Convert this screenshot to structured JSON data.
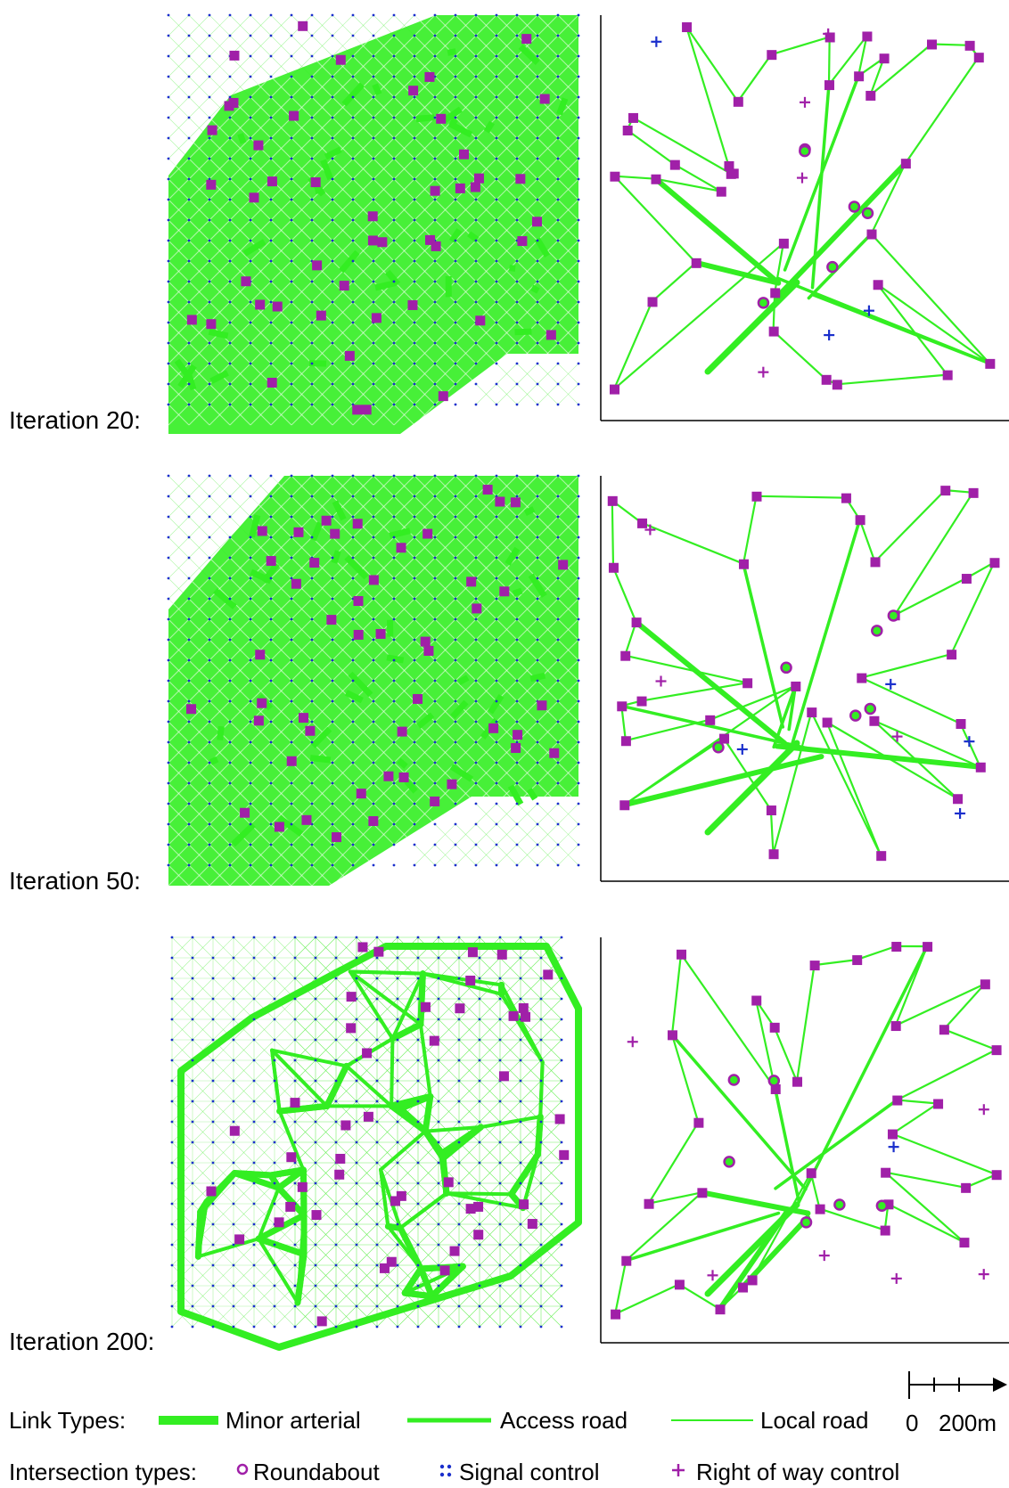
{
  "colors": {
    "road": "#33ee22",
    "road_light": "#66ee55",
    "grid_node": "#1a2fcc",
    "zone": "#a020a8",
    "roundabout": "#a020a8",
    "signal": "#1a2fcc",
    "priority_plus": "#a020a8",
    "priority_plus_blue": "#1a2fcc",
    "axis": "#000000"
  },
  "panels": [
    {
      "label": "Iteration 20:"
    },
    {
      "label": "Iteration 50:"
    },
    {
      "label": "Iteration 200:"
    }
  ],
  "legend": {
    "link_types_label": "Link Types:",
    "links": [
      "Minor arterial",
      "Access road",
      "Local road"
    ],
    "intersection_types_label": "Intersection types:",
    "intersections": [
      "Roundabout",
      "Signal control",
      "Right of way control"
    ]
  },
  "scale": {
    "zero": "0",
    "value": "200m"
  }
}
